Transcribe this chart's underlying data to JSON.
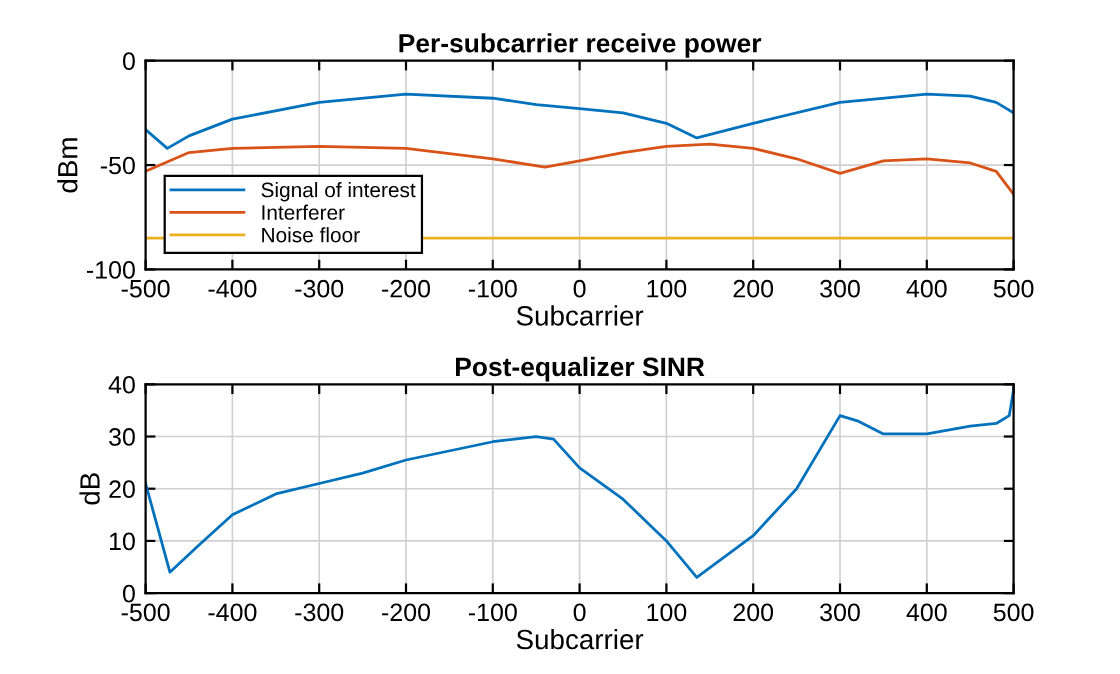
{
  "chart_data": [
    {
      "type": "line",
      "title": "Per-subcarrier receive power",
      "xlabel": "Subcarrier",
      "ylabel": "dBm",
      "xlim": [
        -500,
        500
      ],
      "ylim": [
        -100,
        0
      ],
      "xticks": [
        -500,
        -400,
        -300,
        -200,
        -100,
        0,
        100,
        200,
        300,
        400,
        500
      ],
      "yticks": [
        -100,
        -50,
        0
      ],
      "grid": true,
      "legend": "bottom left",
      "series": [
        {
          "name": "Signal of interest",
          "color": "#0072bd",
          "x": [
            -500,
            -475,
            -450,
            -400,
            -300,
            -200,
            -100,
            -50,
            0,
            50,
            100,
            135,
            200,
            300,
            400,
            450,
            480,
            500
          ],
          "values": [
            -33,
            -42,
            -36,
            -28,
            -20,
            -16,
            -18,
            -21,
            -23,
            -25,
            -30,
            -37,
            -30,
            -20,
            -16,
            -17,
            -20,
            -25
          ]
        },
        {
          "name": "Interferer",
          "color": "#d95319",
          "x": [
            -500,
            -450,
            -400,
            -300,
            -200,
            -100,
            -40,
            0,
            50,
            100,
            150,
            200,
            250,
            300,
            350,
            400,
            450,
            480,
            500
          ],
          "values": [
            -53,
            -44,
            -42,
            -41,
            -42,
            -47,
            -51,
            -48,
            -44,
            -41,
            -40,
            -42,
            -47,
            -54,
            -48,
            -47,
            -49,
            -53,
            -64
          ]
        },
        {
          "name": "Noise floor",
          "color": "#edb120",
          "x": [
            -500,
            500
          ],
          "values": [
            -85,
            -85
          ]
        }
      ]
    },
    {
      "type": "line",
      "title": "Post-equalizer SINR",
      "xlabel": "Subcarrier",
      "ylabel": "dB",
      "xlim": [
        -500,
        500
      ],
      "ylim": [
        0,
        40
      ],
      "xticks": [
        -500,
        -400,
        -300,
        -200,
        -100,
        0,
        100,
        200,
        300,
        400,
        500
      ],
      "yticks": [
        0,
        10,
        20,
        30,
        40
      ],
      "grid": true,
      "series": [
        {
          "color": "#0072bd",
          "x": [
            -500,
            -472,
            -440,
            -400,
            -350,
            -300,
            -250,
            -200,
            -100,
            -50,
            -30,
            0,
            50,
            100,
            135,
            200,
            250,
            300,
            320,
            350,
            400,
            450,
            480,
            495,
            500
          ],
          "values": [
            21,
            4,
            9,
            15,
            19,
            21,
            23,
            25.5,
            29,
            30,
            29.5,
            24,
            18,
            10,
            3,
            11,
            20,
            34,
            33,
            30.5,
            30.5,
            32,
            32.5,
            34,
            39
          ]
        }
      ]
    }
  ]
}
